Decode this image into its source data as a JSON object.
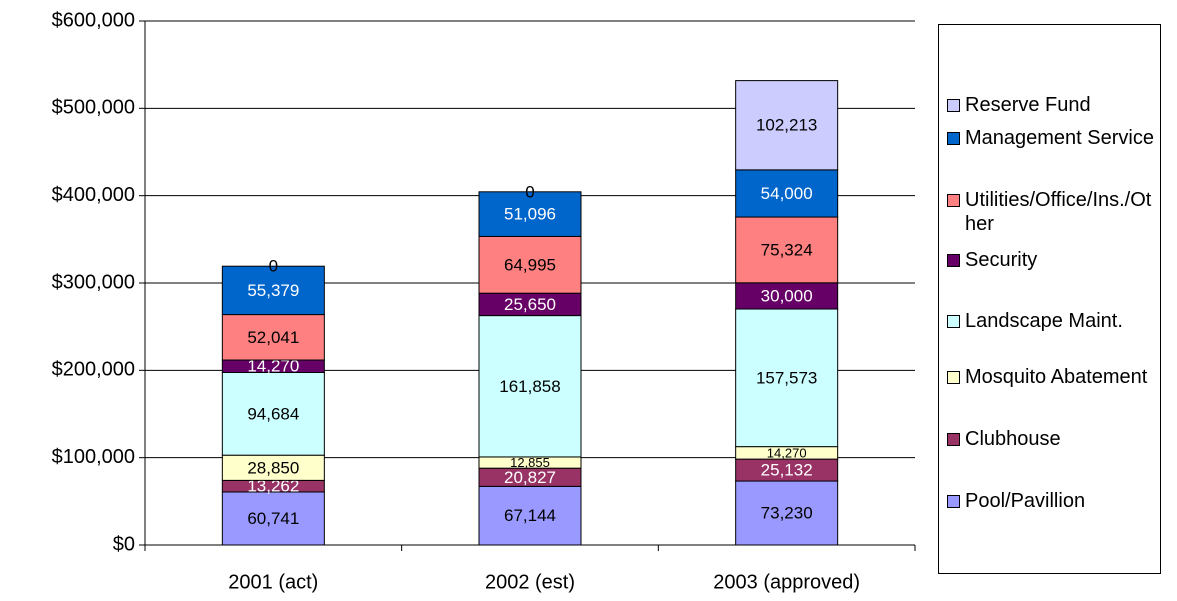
{
  "chart_data": {
    "type": "stacked_bar",
    "categories": [
      "2001 (act)",
      "2002 (est)",
      "2003 (approved)"
    ],
    "ylim": [
      0,
      600000
    ],
    "yticks": [
      {
        "value": 0,
        "label": "$0"
      },
      {
        "value": 100000,
        "label": "$100,000"
      },
      {
        "value": 200000,
        "label": "$200,000"
      },
      {
        "value": 300000,
        "label": "$300,000"
      },
      {
        "value": 400000,
        "label": "$400,000"
      },
      {
        "value": 500000,
        "label": "$500,000"
      },
      {
        "value": 600000,
        "label": "$600,000"
      }
    ],
    "grid": true,
    "legend": "right",
    "series": [
      {
        "name": "Pool/Pavillion",
        "color": "#9999ff",
        "label_color": "#000000",
        "values": [
          60741,
          67144,
          73230
        ],
        "value_labels": [
          "60,741",
          "67,144",
          "73,230"
        ]
      },
      {
        "name": "Clubhouse",
        "color": "#993366",
        "label_color": "#ffffff",
        "values": [
          13262,
          20827,
          25132
        ],
        "value_labels": [
          "13,262",
          "20,827",
          "25,132"
        ]
      },
      {
        "name": "Mosquito Abatement",
        "color": "#ffffcc",
        "label_color": "#000000",
        "values": [
          28850,
          12855,
          14270
        ],
        "value_labels": [
          "28,850",
          "12,855",
          "14,270"
        ]
      },
      {
        "name": "Landscape Maint.",
        "color": "#ccffff",
        "label_color": "#000000",
        "values": [
          94684,
          161858,
          157573
        ],
        "value_labels": [
          "94,684",
          "161,858",
          "157,573"
        ]
      },
      {
        "name": "Security",
        "color": "#660066",
        "label_color": "#ffffff",
        "values": [
          14270,
          25650,
          30000
        ],
        "value_labels": [
          "14,270",
          "25,650",
          "30,000"
        ]
      },
      {
        "name": "Utilities/Office/Ins./Other",
        "color": "#ff8080",
        "label_color": "#000000",
        "values": [
          52041,
          64995,
          75324
        ],
        "value_labels": [
          "52,041",
          "64,995",
          "75,324"
        ]
      },
      {
        "name": "Management Service",
        "color": "#0066cc",
        "label_color": "#ffffff",
        "values": [
          55379,
          51096,
          54000
        ],
        "value_labels": [
          "55,379",
          "51,096",
          "54,000"
        ]
      },
      {
        "name": "Reserve Fund",
        "color": "#ccccff",
        "label_color": "#000000",
        "values": [
          0,
          0,
          102213
        ],
        "value_labels": [
          "0",
          "0",
          "102,213"
        ]
      }
    ]
  }
}
